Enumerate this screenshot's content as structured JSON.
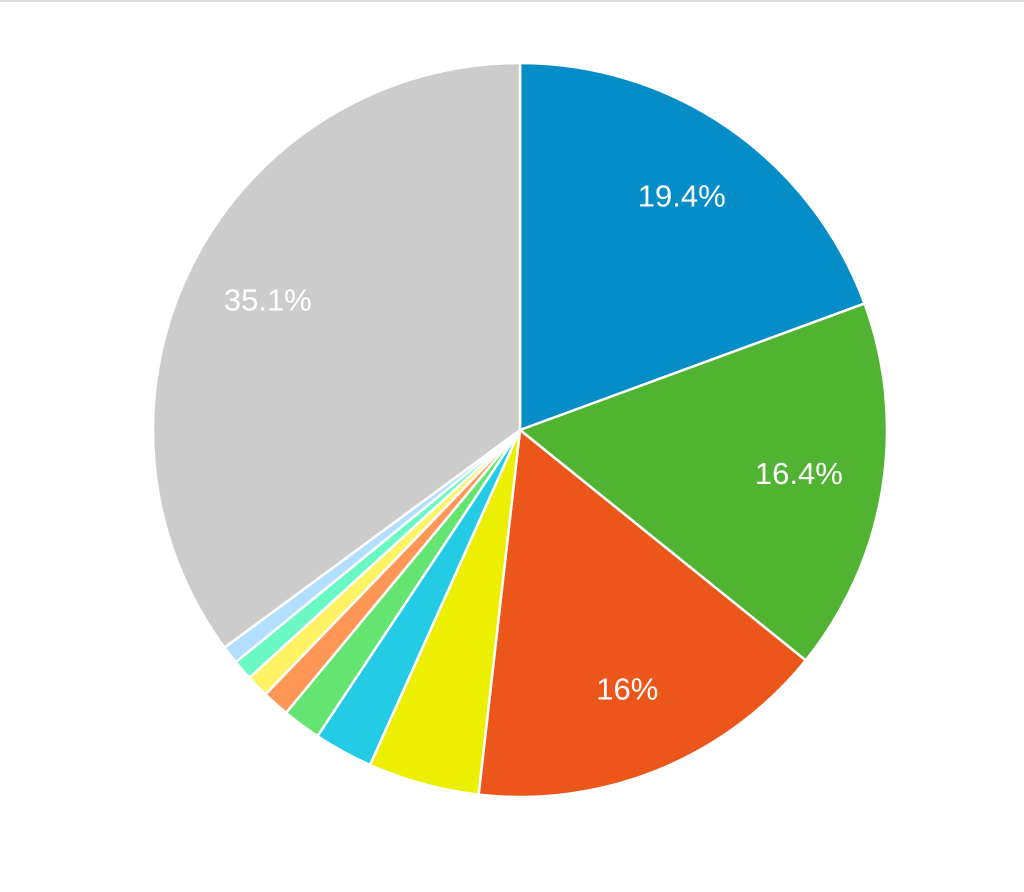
{
  "chart_data": {
    "type": "pie",
    "values": [
      19.4,
      16.4,
      16,
      4.9,
      2.6,
      1.7,
      1.2,
      1.0,
      0.9,
      0.8,
      35.1
    ],
    "value_labels": [
      "19.4%",
      "16.4%",
      "16%",
      null,
      null,
      null,
      null,
      null,
      null,
      null,
      "35.1%"
    ],
    "colors": [
      "#058dc7",
      "#50b432",
      "#ed561b",
      "#edef00",
      "#24cbe5",
      "#64e572",
      "#ff9655",
      "#fff263",
      "#6af9c4",
      "#b2deff",
      "#cccccc"
    ]
  }
}
